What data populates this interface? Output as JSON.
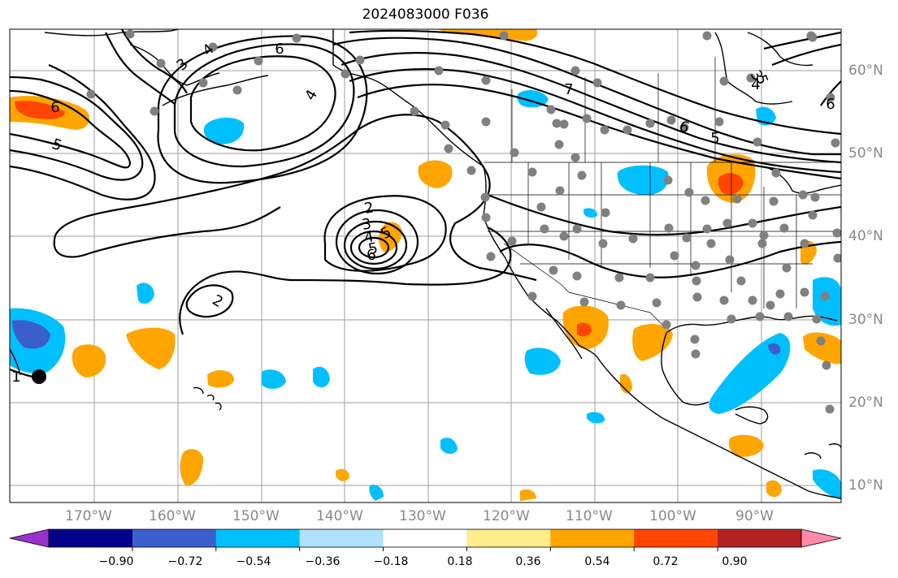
{
  "title": "2024083000 F036",
  "lat_labels": [
    "60°N",
    "50°N",
    "40°N",
    "30°N",
    "20°N",
    "10°N"
  ],
  "lon_labels": [
    "170°W",
    "160°W",
    "150°W",
    "140°W",
    "130°W",
    "120°W",
    "110°W",
    "100°W",
    "90°W"
  ],
  "contour_labels": [
    "6",
    "3",
    "4",
    "6",
    "5",
    "4",
    "5",
    "2",
    "3",
    "4",
    "5",
    "6",
    "2",
    "1",
    "3",
    "4",
    "5",
    "6",
    "5",
    "6",
    "7"
  ],
  "colorbar": {
    "tick_labels": [
      "−0.90",
      "−0.72",
      "−0.54",
      "−0.36",
      "−0.18",
      "0.18",
      "0.36",
      "0.54",
      "0.72",
      "0.90"
    ],
    "colors": [
      "#9932cc",
      "#00008b",
      "#3a5fcd",
      "#00bfff",
      "#b0e2ff",
      "#ffffff",
      "#ffec8b",
      "#ffa500",
      "#ff4500",
      "#b22222",
      "#ff89a8"
    ]
  },
  "colors": {
    "land_outline": "#000000",
    "grid": "#9e9e9e",
    "station_dot": "#808080",
    "positive_moderate": "#ffa500",
    "positive_strong": "#ff4500",
    "negative_moderate": "#00bfff",
    "negative_strong": "#3a5fcd"
  }
}
